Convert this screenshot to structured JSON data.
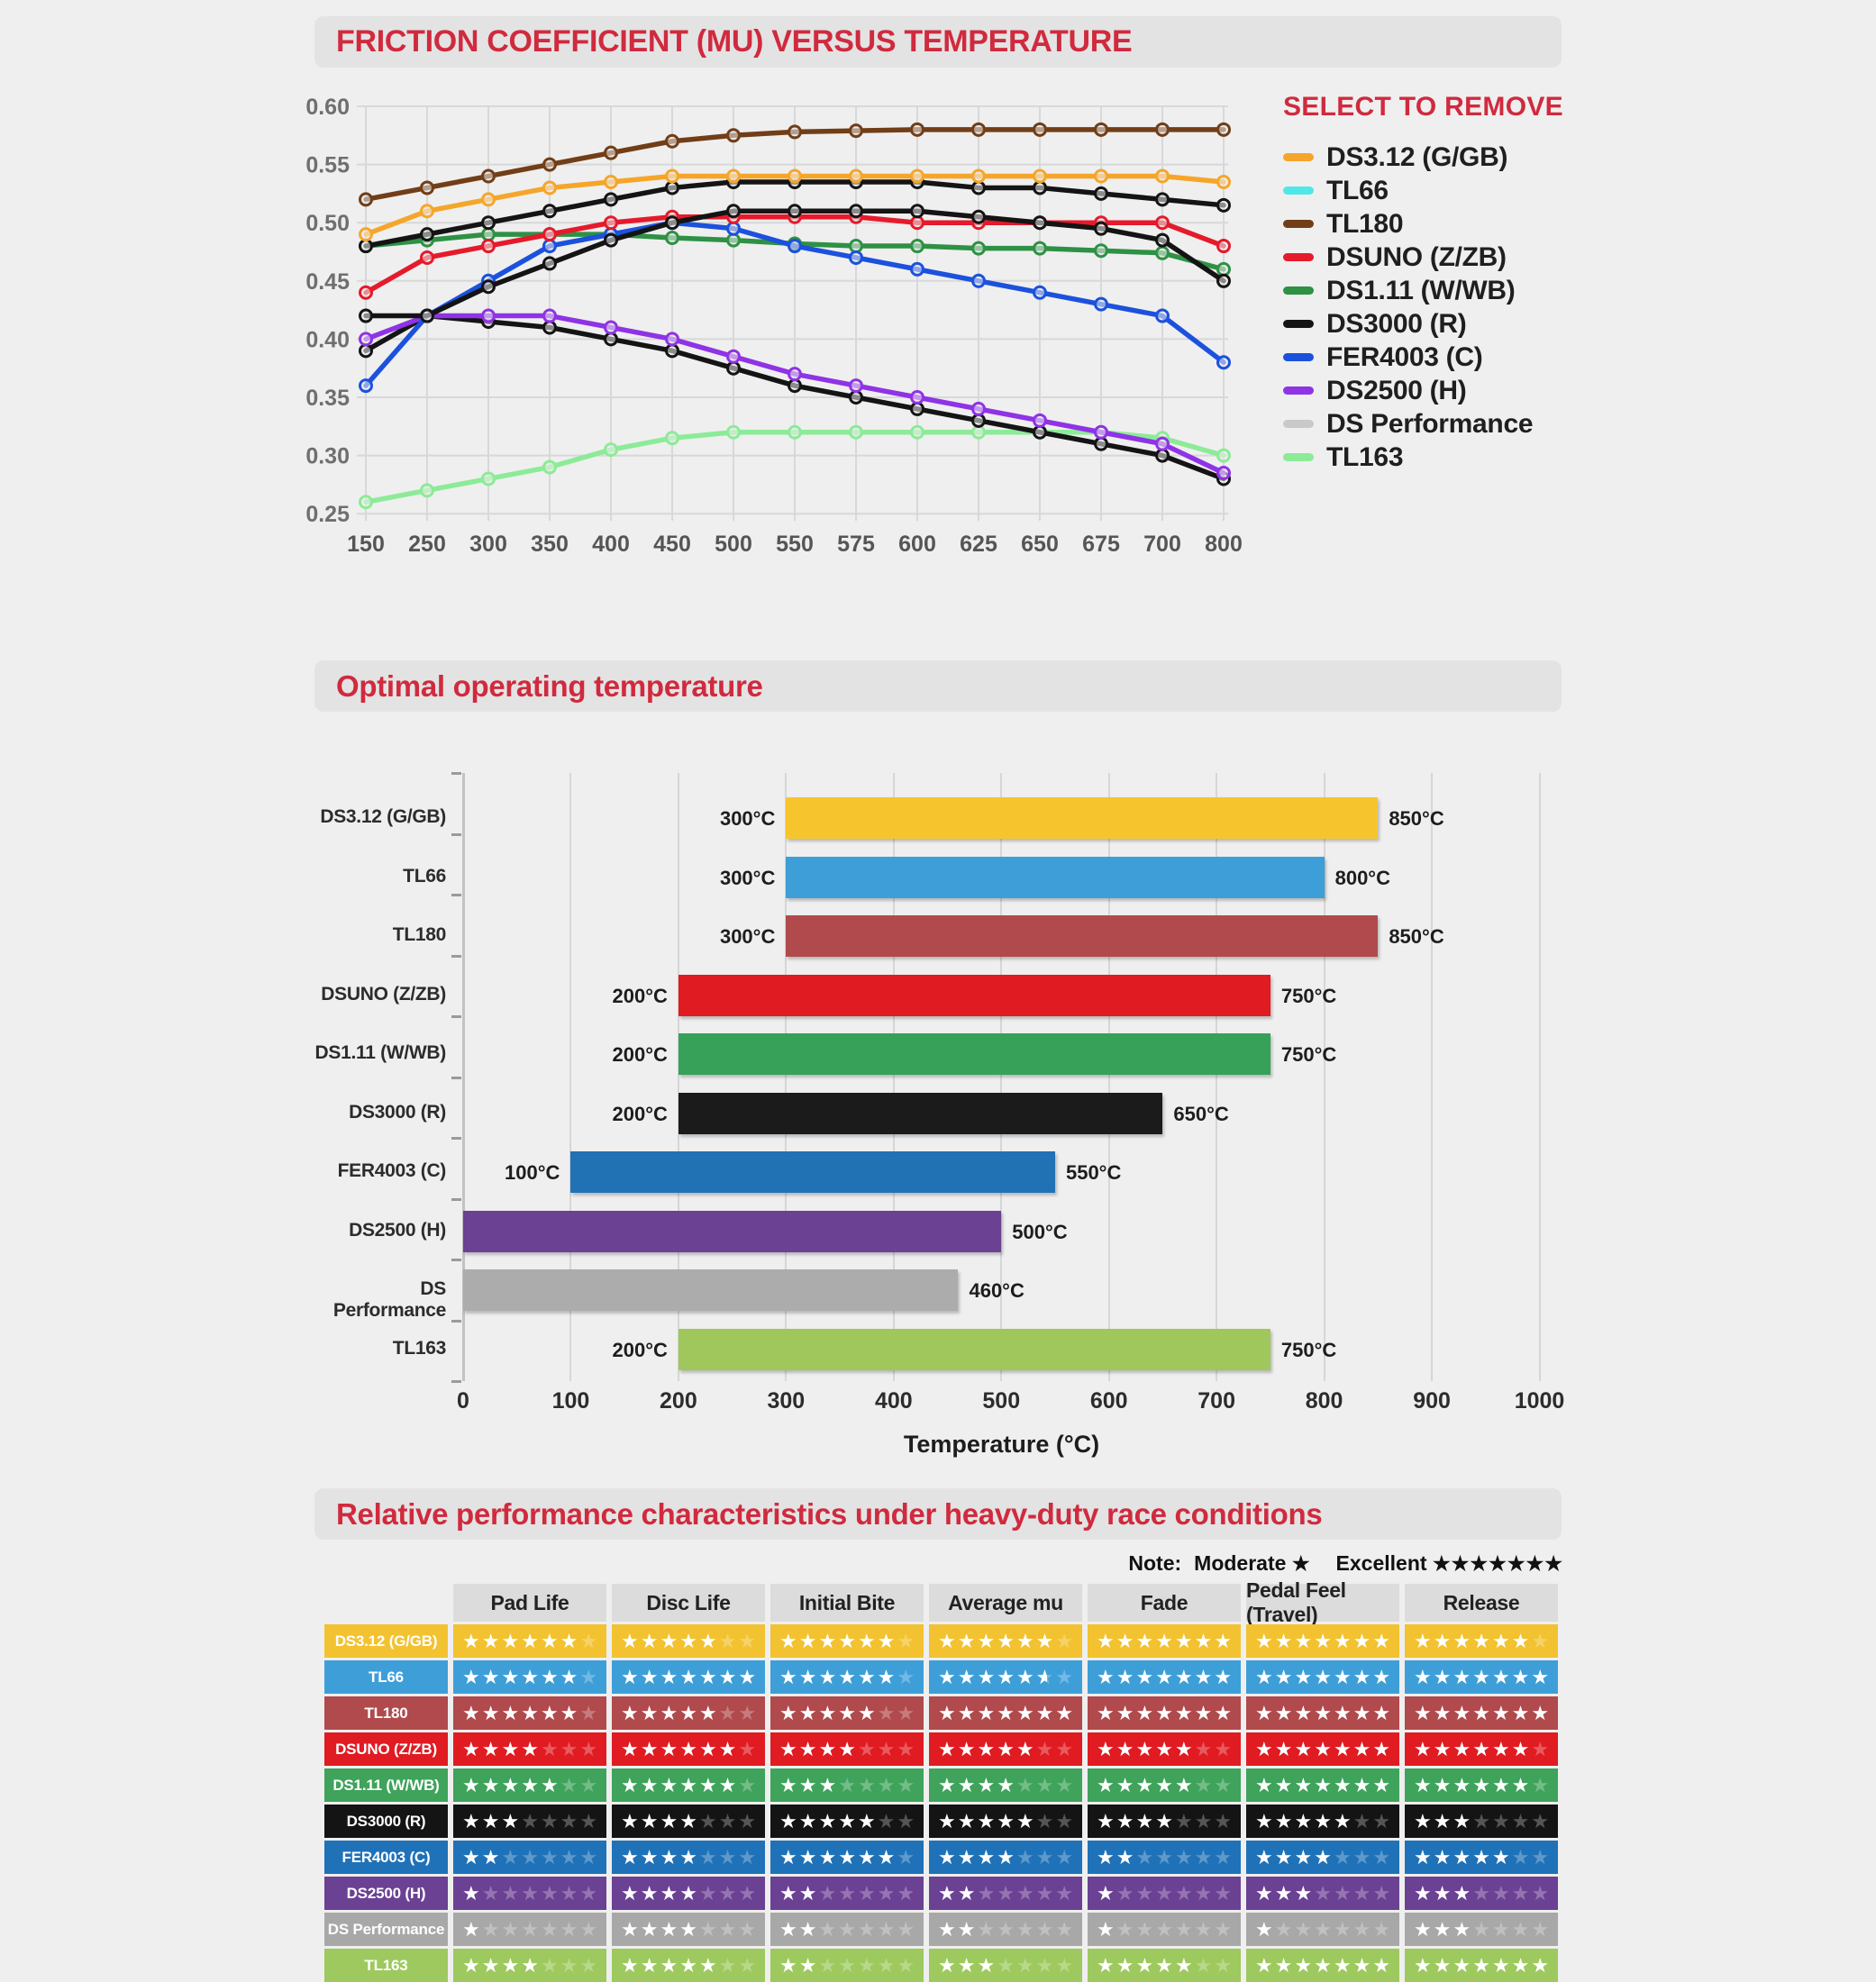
{
  "page_bg": "#efefef",
  "accent": "#d02a3e",
  "friction_section": {
    "title": "FRICTION COEFFICIENT (MU) VERSUS TEMPERATURE",
    "legend_title": "SELECT TO REMOVE"
  },
  "temperature_section": {
    "title": "Optimal operating temperature",
    "axis_label": "Temperature (°C)"
  },
  "ratings_section": {
    "title": "Relative performance characteristics under heavy-duty race conditions",
    "note_label": "Note:",
    "moderate_label": "Moderate",
    "moderate_stars": 1,
    "excellent_label": "Excellent",
    "excellent_stars": 7
  },
  "chart_data": [
    {
      "type": "line",
      "title": "FRICTION COEFFICIENT (MU) VERSUS TEMPERATURE",
      "xlabel": "",
      "ylabel": "",
      "x_categories": [
        "150",
        "250",
        "300",
        "350",
        "400",
        "450",
        "500",
        "550",
        "575",
        "600",
        "625",
        "650",
        "675",
        "700",
        "800"
      ],
      "ylim": [
        0.25,
        0.6
      ],
      "y_ticks": [
        "0.60",
        "0.55",
        "0.50",
        "0.45",
        "0.40",
        "0.35",
        "0.30",
        "0.25"
      ],
      "grid": true,
      "legend_position": "right",
      "series": [
        {
          "name": "DS3.12 (G/GB)",
          "color": "#F5A62A",
          "values": [
            0.49,
            0.51,
            0.52,
            0.53,
            0.535,
            0.54,
            0.54,
            0.54,
            0.54,
            0.54,
            0.54,
            0.54,
            0.54,
            0.54,
            0.535
          ]
        },
        {
          "name": "TL66",
          "color": "#141414",
          "legend_color": "#52E7E7",
          "values": [
            0.48,
            0.49,
            0.5,
            0.51,
            0.52,
            0.53,
            0.535,
            0.535,
            0.535,
            0.535,
            0.53,
            0.53,
            0.525,
            0.52,
            0.515
          ]
        },
        {
          "name": "TL180",
          "color": "#713E18",
          "values": [
            0.52,
            0.53,
            0.54,
            0.55,
            0.56,
            0.57,
            0.575,
            0.578,
            0.579,
            0.58,
            0.58,
            0.58,
            0.58,
            0.58,
            0.58
          ]
        },
        {
          "name": "DSUNO (Z/ZB)",
          "color": "#E51A2B",
          "values": [
            0.44,
            0.47,
            0.48,
            0.49,
            0.5,
            0.505,
            0.505,
            0.505,
            0.505,
            0.5,
            0.5,
            0.5,
            0.5,
            0.5,
            0.48
          ]
        },
        {
          "name": "DS1.11 (W/WB)",
          "color": "#2E9144",
          "values": [
            0.48,
            0.485,
            0.49,
            0.49,
            0.49,
            0.487,
            0.485,
            0.482,
            0.48,
            0.48,
            0.478,
            0.478,
            0.476,
            0.474,
            0.46
          ]
        },
        {
          "name": "DS3000 (R)",
          "color": "#141414",
          "values": [
            0.42,
            0.42,
            0.445,
            0.465,
            0.485,
            0.5,
            0.51,
            0.51,
            0.51,
            0.51,
            0.505,
            0.5,
            0.495,
            0.485,
            0.45
          ]
        },
        {
          "name": "FER4003 (C)",
          "color": "#1C51DD",
          "values": [
            0.36,
            0.42,
            0.45,
            0.48,
            0.49,
            0.5,
            0.495,
            0.48,
            0.47,
            0.46,
            0.45,
            0.44,
            0.43,
            0.42,
            0.38
          ]
        },
        {
          "name": "DS2500 (H)",
          "color": "#8F33E6",
          "values": [
            0.4,
            0.42,
            0.42,
            0.42,
            0.41,
            0.4,
            0.385,
            0.37,
            0.36,
            0.35,
            0.34,
            0.33,
            0.32,
            0.31,
            0.285
          ]
        },
        {
          "name": "DS Performance",
          "color": "#141414",
          "legend_color": "#C9C9C9",
          "values": [
            0.39,
            0.42,
            0.415,
            0.41,
            0.4,
            0.39,
            0.375,
            0.36,
            0.35,
            0.34,
            0.33,
            0.32,
            0.31,
            0.3,
            0.28
          ]
        },
        {
          "name": "TL163",
          "color": "#8CEB97",
          "values": [
            0.26,
            0.27,
            0.28,
            0.29,
            0.305,
            0.315,
            0.32,
            0.32,
            0.32,
            0.32,
            0.32,
            0.32,
            0.32,
            0.315,
            0.3
          ]
        }
      ],
      "draw_order": [
        "TL163",
        "DS Performance",
        "DS2500 (H)",
        "DS1.11 (W/WB)",
        "FER4003 (C)",
        "DSUNO (Z/ZB)",
        "DS3000 (R)",
        "TL66",
        "DS3.12 (G/GB)",
        "TL180"
      ]
    },
    {
      "type": "bar",
      "variant": "horizontal-range",
      "title": "Optimal operating temperature",
      "xlabel": "Temperature (°C)",
      "xlim": [
        0,
        1000
      ],
      "x_ticks": [
        0,
        100,
        200,
        300,
        400,
        500,
        600,
        700,
        800,
        900,
        1000
      ],
      "unit": "°C",
      "grid": true,
      "bars": [
        {
          "label": "DS3.12 (G/GB)",
          "start": 300,
          "end": 850,
          "color": "#F6C52E"
        },
        {
          "label": "TL66",
          "start": 300,
          "end": 800,
          "color": "#3E9FD8"
        },
        {
          "label": "TL180",
          "start": 300,
          "end": 850,
          "color": "#B04A4C"
        },
        {
          "label": "DSUNO (Z/ZB)",
          "start": 200,
          "end": 750,
          "color": "#E01B22"
        },
        {
          "label": "DS1.11 (W/WB)",
          "start": 200,
          "end": 750,
          "color": "#37A159"
        },
        {
          "label": "DS3000 (R)",
          "start": 200,
          "end": 650,
          "color": "#1B1B1B"
        },
        {
          "label": "FER4003 (C)",
          "start": 100,
          "end": 550,
          "color": "#2171B5"
        },
        {
          "label": "DS2500 (H)",
          "start": 0,
          "end": 500,
          "color": "#6B4193"
        },
        {
          "label": "DS Performance",
          "start": 0,
          "end": 460,
          "color": "#ACACAC"
        },
        {
          "label": "TL163",
          "start": 200,
          "end": 750,
          "color": "#A0C75C"
        }
      ]
    },
    {
      "type": "table",
      "title": "Relative performance characteristics under heavy-duty race conditions",
      "max_stars": 7,
      "columns": [
        "Pad Life",
        "Disc Life",
        "Initial Bite",
        "Average mu",
        "Fade",
        "Pedal Feel (Travel)",
        "Release"
      ],
      "rows": [
        {
          "label": "DS3.12 (G/GB)",
          "color": "#F2C230",
          "values": [
            6,
            5,
            6,
            6,
            7,
            7,
            6
          ]
        },
        {
          "label": "TL66",
          "color": "#3E9FD8",
          "values": [
            6,
            7,
            6,
            5.5,
            7,
            7,
            7
          ]
        },
        {
          "label": "TL180",
          "color": "#B04A4C",
          "values": [
            6,
            5,
            5,
            7,
            7,
            7,
            7
          ]
        },
        {
          "label": "DSUNO (Z/ZB)",
          "color": "#E01B22",
          "values": [
            4,
            6,
            4,
            5,
            5,
            7,
            6
          ]
        },
        {
          "label": "DS1.11 (W/WB)",
          "color": "#3FA35B",
          "values": [
            5,
            6,
            3,
            4,
            5,
            7,
            6
          ]
        },
        {
          "label": "DS3000 (R)",
          "color": "#141414",
          "values": [
            3,
            4,
            5,
            5,
            4,
            5,
            3
          ]
        },
        {
          "label": "FER4003 (C)",
          "color": "#1F72B8",
          "values": [
            2,
            4,
            6,
            4,
            2,
            4,
            5
          ]
        },
        {
          "label": "DS2500 (H)",
          "color": "#6B4193",
          "values": [
            1,
            4,
            2,
            2,
            1,
            3,
            3
          ]
        },
        {
          "label": "DS Performance",
          "color": "#A8A8A8",
          "values": [
            1,
            4,
            2,
            2,
            1,
            1,
            3
          ]
        },
        {
          "label": "TL163",
          "color": "#9DC95E",
          "values": [
            4,
            5,
            2,
            3,
            5,
            7,
            7
          ]
        }
      ]
    }
  ]
}
